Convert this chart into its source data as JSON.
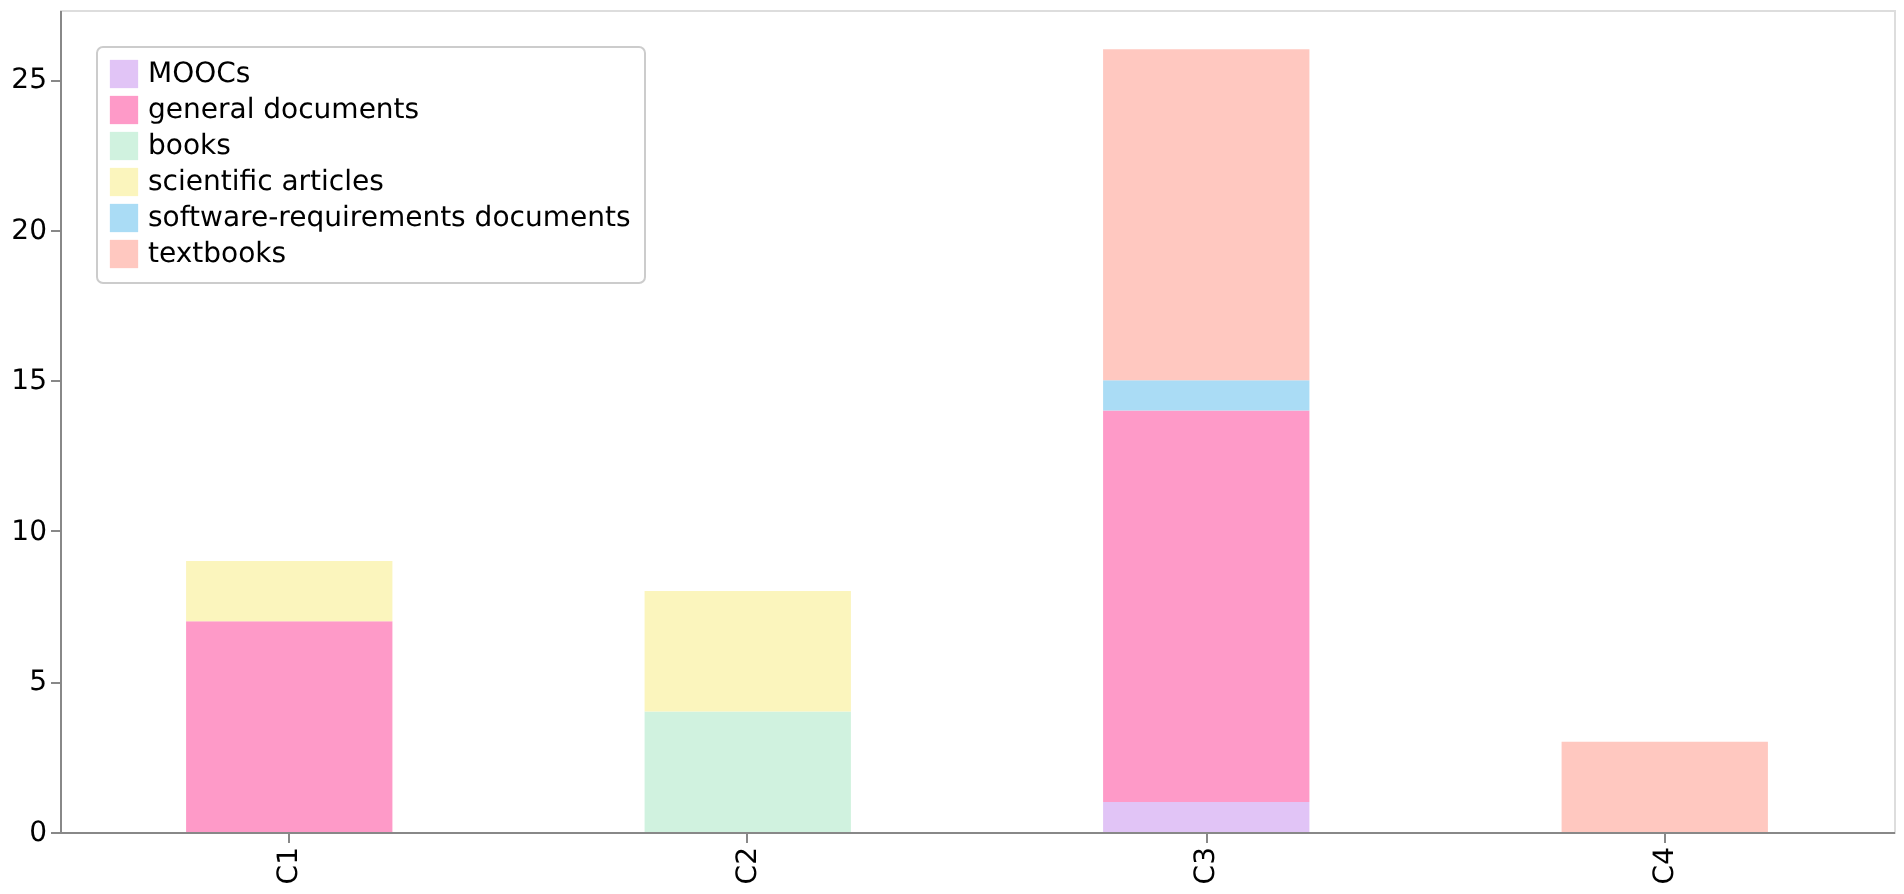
{
  "chart_data": {
    "type": "bar",
    "stacked": true,
    "categories": [
      "C1",
      "C2",
      "C3",
      "C4"
    ],
    "series": [
      {
        "name": "MOOCs",
        "color": "#e1c4f6",
        "values": [
          0,
          0,
          1,
          0
        ]
      },
      {
        "name": "general documents",
        "color": "#fe9ac8",
        "values": [
          7,
          0,
          13,
          0
        ]
      },
      {
        "name": "books",
        "color": "#d0f2df",
        "values": [
          0,
          4,
          0,
          0
        ]
      },
      {
        "name": "scientific articles",
        "color": "#fbf5bd",
        "values": [
          2,
          4,
          0,
          0
        ]
      },
      {
        "name": "software-requirements documents",
        "color": "#aadcf5",
        "values": [
          0,
          0,
          1,
          0
        ]
      },
      {
        "name": "textbooks",
        "color": "#ffc8c0",
        "values": [
          0,
          0,
          11,
          3
        ]
      }
    ],
    "ylim": [
      0,
      27.3
    ],
    "yticks": [
      0,
      5,
      10,
      15,
      20,
      25
    ],
    "grid": false,
    "legend": "top left"
  }
}
